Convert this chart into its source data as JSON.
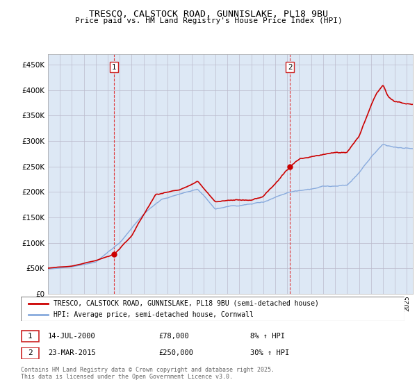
{
  "title": "TRESCO, CALSTOCK ROAD, GUNNISLAKE, PL18 9BU",
  "subtitle": "Price paid vs. HM Land Registry's House Price Index (HPI)",
  "ylabel_ticks": [
    "£0",
    "£50K",
    "£100K",
    "£150K",
    "£200K",
    "£250K",
    "£300K",
    "£350K",
    "£400K",
    "£450K"
  ],
  "ytick_values": [
    0,
    50000,
    100000,
    150000,
    200000,
    250000,
    300000,
    350000,
    400000,
    450000
  ],
  "ylim": [
    0,
    470000
  ],
  "xlim_start": 1995.0,
  "xlim_end": 2025.5,
  "vline1_x": 2000.54,
  "vline2_x": 2015.23,
  "vline_color": "#dd2222",
  "marker1_x": 2000.54,
  "marker1_y": 78000,
  "marker2_x": 2015.23,
  "marker2_y": 250000,
  "marker_color": "#cc0000",
  "red_line_color": "#cc0000",
  "blue_line_color": "#88aadd",
  "chart_bg_color": "#dde8f5",
  "legend_label_red": "TRESCO, CALSTOCK ROAD, GUNNISLAKE, PL18 9BU (semi-detached house)",
  "legend_label_blue": "HPI: Average price, semi-detached house, Cornwall",
  "table_row1": [
    "1",
    "14-JUL-2000",
    "£78,000",
    "8% ↑ HPI"
  ],
  "table_row2": [
    "2",
    "23-MAR-2015",
    "£250,000",
    "30% ↑ HPI"
  ],
  "footer": "Contains HM Land Registry data © Crown copyright and database right 2025.\nThis data is licensed under the Open Government Licence v3.0.",
  "background_color": "#ffffff",
  "grid_color": "#bbbbcc"
}
